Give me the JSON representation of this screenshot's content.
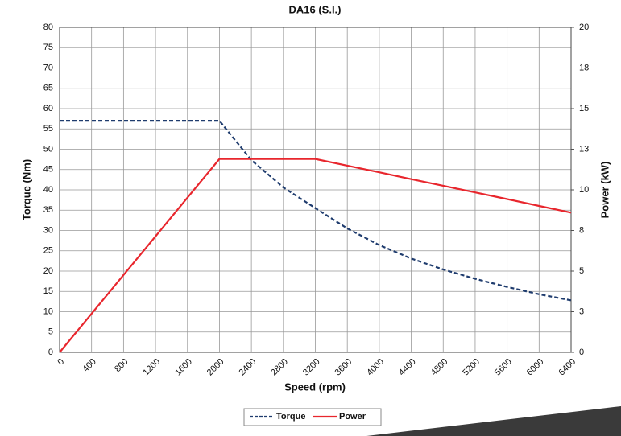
{
  "chart_data": {
    "type": "line",
    "title": "DA16 (S.I.)",
    "x_label": "Speed (rpm)",
    "y_label": "Torque (Nm)",
    "y2_label": "Power (kW)",
    "x": [
      0,
      400,
      800,
      1200,
      1600,
      2000,
      2400,
      2800,
      3200,
      3600,
      4000,
      4400,
      4800,
      5200,
      5600,
      6000,
      6400
    ],
    "xlim": [
      0,
      6400
    ],
    "xticks": [
      0,
      400,
      800,
      1200,
      1600,
      2000,
      2400,
      2800,
      3200,
      3600,
      4000,
      4400,
      4800,
      5200,
      5600,
      6000,
      6400
    ],
    "ylim": [
      0,
      80
    ],
    "yticks": [
      0,
      5,
      10,
      15,
      20,
      25,
      30,
      35,
      40,
      45,
      50,
      55,
      60,
      65,
      70,
      75,
      80
    ],
    "y2lim": [
      0,
      20
    ],
    "y2ticks": [
      0,
      {
        "value": 2.5,
        "label": "3"
      },
      5,
      {
        "value": 7.5,
        "label": "8"
      },
      10,
      {
        "value": 12.5,
        "label": "13"
      },
      15,
      {
        "value": 17.5,
        "label": "18"
      },
      20
    ],
    "grid": true,
    "legend": "bottom",
    "series": [
      {
        "name": "Torque",
        "color": "#1f3c6e",
        "dash": true,
        "axis": "y",
        "values": [
          57,
          57,
          57,
          57,
          57,
          57,
          47.3,
          40.6,
          35.5,
          30.5,
          26.4,
          23.1,
          20.4,
          18.1,
          16.1,
          14.3,
          12.8
        ]
      },
      {
        "name": "Power",
        "color": "#e8262d",
        "dash": false,
        "axis": "y2",
        "values": [
          0,
          2.38,
          4.76,
          7.14,
          9.52,
          11.9,
          11.9,
          11.9,
          11.9,
          11.49,
          11.08,
          10.66,
          10.25,
          9.84,
          9.43,
          9.01,
          8.6
        ]
      }
    ]
  }
}
